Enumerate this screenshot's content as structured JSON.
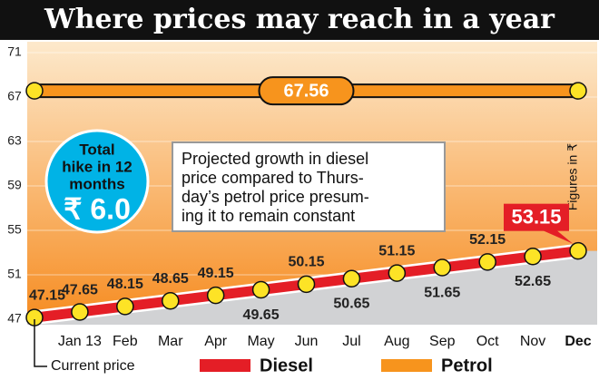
{
  "chart_data": {
    "type": "line",
    "title": "Where prices may reach in a year",
    "categories": [
      null,
      "Jan 13",
      "Feb",
      "Mar",
      "Apr",
      "May",
      "Jun",
      "Jul",
      "Aug",
      "Sep",
      "Oct",
      "Nov",
      "Dec"
    ],
    "series": [
      {
        "name": "Diesel",
        "color": "#e41e26",
        "values": [
          47.15,
          47.65,
          48.15,
          48.65,
          49.15,
          49.65,
          50.15,
          50.65,
          51.15,
          51.65,
          52.15,
          52.65,
          53.15
        ]
      },
      {
        "name": "Petrol",
        "color": "#f7941d",
        "values": [
          67.56,
          67.56,
          67.56,
          67.56,
          67.56,
          67.56,
          67.56,
          67.56,
          67.56,
          67.56,
          67.56,
          67.56,
          67.56
        ]
      }
    ],
    "ylim": [
      47,
      71
    ],
    "yticks": [
      47,
      51,
      55,
      59,
      63,
      67,
      71
    ],
    "grid": true,
    "annotations": {
      "current_price": "Current price",
      "hike_title": [
        "Total",
        "hike in 12",
        "months"
      ],
      "hike_value": "₹ 6.0",
      "note": [
        "Projected growth in diesel",
        "price compared to Thurs-",
        "day’s petrol price presum-",
        "ing it to remain constant"
      ],
      "units": "Figures in ₹"
    }
  }
}
